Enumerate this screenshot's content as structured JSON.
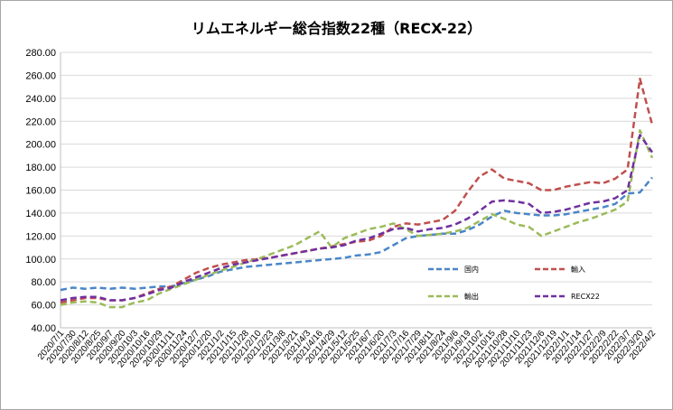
{
  "chart_data": {
    "type": "line",
    "title": "リムエネルギー総合指数22種（RECX-22）",
    "xlabel": "",
    "ylabel": "",
    "ylim": [
      40,
      280
    ],
    "yticks": [
      "40.00",
      "60.00",
      "80.00",
      "100.00",
      "120.00",
      "140.00",
      "160.00",
      "180.00",
      "200.00",
      "220.00",
      "240.00",
      "260.00",
      "280.00"
    ],
    "grid": true,
    "legend_position": "inside-bottom-right",
    "x": [
      "2020/7/1",
      "2020/7/30",
      "2020/8/12",
      "2020/8/25",
      "2020/9/7",
      "2020/9/20",
      "2020/10/3",
      "2020/10/16",
      "2020/10/29",
      "2020/11/11",
      "2020/11/24",
      "2020/12/7",
      "2020/12/20",
      "2021/1/2",
      "2021/1/15",
      "2021/1/28",
      "2021/2/10",
      "2021/2/23",
      "2021/3/8",
      "2021/3/21",
      "2021/4/3",
      "2021/4/16",
      "2021/4/29",
      "2021/5/12",
      "2021/5/25",
      "2021/6/7",
      "2021/6/20",
      "2021/7/3",
      "2021/7/16",
      "2021/7/29",
      "2021/8/11",
      "2021/8/24",
      "2021/9/6",
      "2021/9/19",
      "2021/10/2",
      "2021/10/15",
      "2021/10/28",
      "2021/11/10",
      "2021/11/23",
      "2021/12/6",
      "2021/12/19",
      "2022/1/1",
      "2022/1/14",
      "2022/1/27",
      "2022/2/9",
      "2022/2/22",
      "2022/3/7",
      "2022/3/20",
      "2022/4/2"
    ],
    "series": [
      {
        "name": "国内",
        "color": "#4a86c8",
        "values": [
          73,
          75,
          74,
          75,
          74,
          75,
          74,
          75,
          76,
          76,
          79,
          82,
          85,
          89,
          91,
          93,
          94,
          95,
          96,
          97,
          98,
          99,
          100,
          101,
          103,
          104,
          106,
          112,
          118,
          120,
          121,
          122,
          122,
          125,
          130,
          137,
          142,
          140,
          139,
          138,
          138,
          139,
          141,
          143,
          145,
          148,
          157,
          158,
          171
        ]
      },
      {
        "name": "輸入",
        "color": "#c0504d",
        "values": [
          62,
          64,
          66,
          66,
          64,
          64,
          66,
          70,
          74,
          76,
          82,
          88,
          92,
          95,
          97,
          99,
          100,
          101,
          103,
          105,
          107,
          109,
          111,
          113,
          115,
          116,
          120,
          128,
          131,
          130,
          132,
          134,
          142,
          158,
          172,
          178,
          170,
          168,
          166,
          160,
          160,
          163,
          165,
          167,
          166,
          170,
          178,
          257,
          217
        ]
      },
      {
        "name": "輸出",
        "color": "#9bbb59",
        "values": [
          60,
          62,
          63,
          62,
          58,
          58,
          62,
          64,
          70,
          74,
          78,
          82,
          86,
          90,
          93,
          97,
          100,
          104,
          108,
          112,
          118,
          124,
          110,
          118,
          122,
          126,
          128,
          131,
          126,
          120,
          121,
          122,
          124,
          127,
          133,
          139,
          135,
          130,
          128,
          120,
          124,
          128,
          132,
          135,
          139,
          143,
          150,
          212,
          188
        ]
      },
      {
        "name": "RECX22",
        "color": "#7030a0",
        "values": [
          64,
          66,
          67,
          67,
          64,
          64,
          66,
          69,
          73,
          75,
          80,
          84,
          88,
          92,
          95,
          97,
          99,
          101,
          103,
          105,
          107,
          109,
          110,
          112,
          116,
          118,
          122,
          126,
          127,
          124,
          126,
          127,
          130,
          135,
          142,
          150,
          151,
          150,
          148,
          140,
          141,
          143,
          146,
          149,
          150,
          153,
          160,
          208,
          193
        ]
      }
    ]
  }
}
